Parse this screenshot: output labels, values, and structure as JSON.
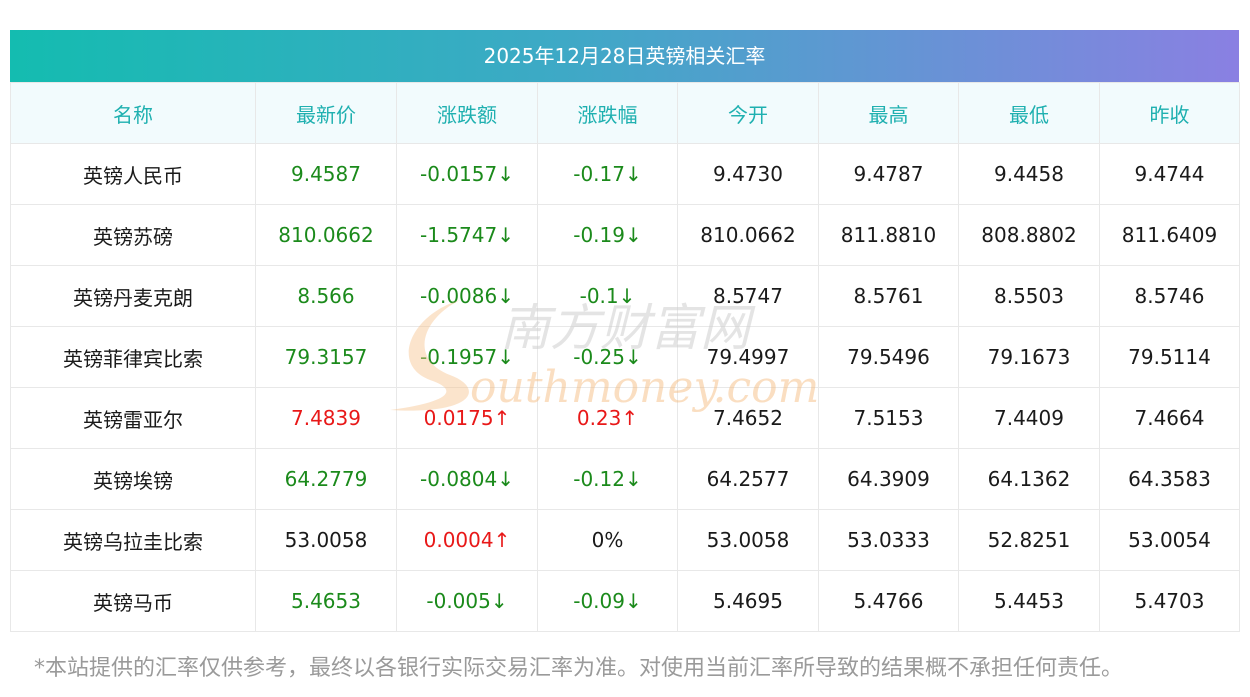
{
  "title": "2025年12月28日英镑相关汇率",
  "headers": [
    "名称",
    "最新价",
    "涨跌额",
    "涨跌幅",
    "今开",
    "最高",
    "最低",
    "昨收"
  ],
  "rows": [
    {
      "name": "英镑人民币",
      "latest": "9.4587",
      "change": "-0.0157↓",
      "change_pct": "-0.17↓",
      "open": "9.4730",
      "high": "9.4787",
      "low": "9.4458",
      "prev_close": "9.4744",
      "latest_dir": "down",
      "change_dir": "down",
      "pct_dir": "down"
    },
    {
      "name": "英镑苏磅",
      "latest": "810.0662",
      "change": "-1.5747↓",
      "change_pct": "-0.19↓",
      "open": "810.0662",
      "high": "811.8810",
      "low": "808.8802",
      "prev_close": "811.6409",
      "latest_dir": "down",
      "change_dir": "down",
      "pct_dir": "down"
    },
    {
      "name": "英镑丹麦克朗",
      "latest": "8.566",
      "change": "-0.0086↓",
      "change_pct": "-0.1↓",
      "open": "8.5747",
      "high": "8.5761",
      "low": "8.5503",
      "prev_close": "8.5746",
      "latest_dir": "down",
      "change_dir": "down",
      "pct_dir": "down"
    },
    {
      "name": "英镑菲律宾比索",
      "latest": "79.3157",
      "change": "-0.1957↓",
      "change_pct": "-0.25↓",
      "open": "79.4997",
      "high": "79.5496",
      "low": "79.1673",
      "prev_close": "79.5114",
      "latest_dir": "down",
      "change_dir": "down",
      "pct_dir": "down"
    },
    {
      "name": "英镑雷亚尔",
      "latest": "7.4839",
      "change": "0.0175↑",
      "change_pct": "0.23↑",
      "open": "7.4652",
      "high": "7.5153",
      "low": "7.4409",
      "prev_close": "7.4664",
      "latest_dir": "up",
      "change_dir": "up",
      "pct_dir": "up"
    },
    {
      "name": "英镑埃镑",
      "latest": "64.2779",
      "change": "-0.0804↓",
      "change_pct": "-0.12↓",
      "open": "64.2577",
      "high": "64.3909",
      "low": "64.1362",
      "prev_close": "64.3583",
      "latest_dir": "down",
      "change_dir": "down",
      "pct_dir": "down"
    },
    {
      "name": "英镑乌拉圭比索",
      "latest": "53.0058",
      "change": "0.0004↑",
      "change_pct": "0%",
      "open": "53.0058",
      "high": "53.0333",
      "low": "52.8251",
      "prev_close": "53.0054",
      "latest_dir": "flat",
      "change_dir": "up",
      "pct_dir": "flat"
    },
    {
      "name": "英镑马币",
      "latest": "5.4653",
      "change": "-0.005↓",
      "change_pct": "-0.09↓",
      "open": "5.4695",
      "high": "5.4766",
      "low": "5.4453",
      "prev_close": "5.4703",
      "latest_dir": "down",
      "change_dir": "down",
      "pct_dir": "down"
    }
  ],
  "watermark": {
    "cn": "南方财富网",
    "en": "outhmoney.com",
    "color": "#f5b878"
  },
  "disclaimer": "*本站提供的汇率仅供参考，最终以各银行实际交易汇率为准。对使用当前汇率所导致的结果概不承担任何责任。",
  "colors": {
    "up": "#e81818",
    "down": "#1b8a1b",
    "header_text": "#1fb0b0"
  }
}
